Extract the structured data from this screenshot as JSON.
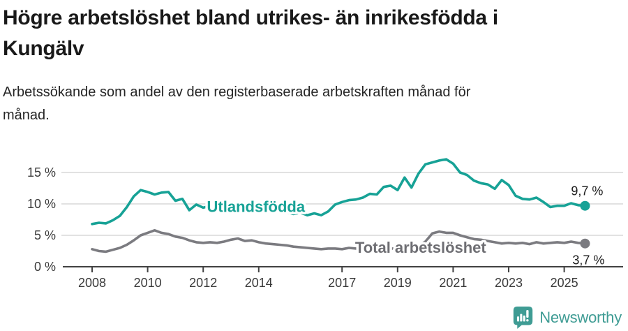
{
  "header": {
    "title_lines": [
      "Högre arbetslöshet bland utrikes- än inrikesfödda i",
      "Kungälv"
    ],
    "subtitle_lines": [
      "Arbetssökande som andel av den registerbaserade arbetskraften månad för",
      "månad."
    ]
  },
  "branding": {
    "name": "Newsworthy",
    "color": "#3f9c94"
  },
  "chart_data": {
    "type": "line",
    "title": "Högre arbetslöshet bland utrikes- än inrikesfödda i Kungälv",
    "xlabel": "",
    "ylabel": "",
    "ylim": [
      0,
      18
    ],
    "xlim": [
      2006.9,
      2027.1
    ],
    "grid": "horizontal",
    "legend": "inline-labels",
    "y_ticks": [
      {
        "value": 0,
        "label": "0 %"
      },
      {
        "value": 5,
        "label": "5 %"
      },
      {
        "value": 10,
        "label": "10 %"
      },
      {
        "value": 15,
        "label": "15 %"
      }
    ],
    "x_ticks": [
      {
        "value": 2008,
        "label": "2008"
      },
      {
        "value": 2010,
        "label": "2010"
      },
      {
        "value": 2012,
        "label": "2012"
      },
      {
        "value": 2014,
        "label": "2014"
      },
      {
        "value": 2017,
        "label": "2017"
      },
      {
        "value": 2019,
        "label": "2019"
      },
      {
        "value": 2021,
        "label": "2021"
      },
      {
        "value": 2023,
        "label": "2023"
      },
      {
        "value": 2025,
        "label": "2025"
      }
    ],
    "x": [
      2008,
      2008.25,
      2008.5,
      2008.75,
      2009,
      2009.25,
      2009.5,
      2009.75,
      2010,
      2010.25,
      2010.5,
      2010.75,
      2011,
      2011.25,
      2011.5,
      2011.75,
      2012,
      2012.25,
      2012.5,
      2012.75,
      2013,
      2013.25,
      2013.5,
      2013.75,
      2014,
      2014.25,
      2014.5,
      2014.75,
      2015,
      2015.25,
      2015.5,
      2015.75,
      2016,
      2016.25,
      2016.5,
      2016.75,
      2017,
      2017.25,
      2017.5,
      2017.75,
      2018,
      2018.25,
      2018.5,
      2018.75,
      2019,
      2019.25,
      2019.5,
      2019.75,
      2020,
      2020.25,
      2020.5,
      2020.75,
      2021,
      2021.25,
      2021.5,
      2021.75,
      2022,
      2022.25,
      2022.5,
      2022.75,
      2023,
      2023.25,
      2023.5,
      2023.75,
      2024,
      2024.25,
      2024.5,
      2024.75,
      2025,
      2025.25,
      2025.5,
      2025.75
    ],
    "series": [
      {
        "name": "Utlandsfödda",
        "color": "#17a296",
        "label_color": "#17a296",
        "end_label": "9,7 %",
        "last_value": "9,7 %",
        "label_pos": {
          "x": 2013.9,
          "y": 8.7
        },
        "values": [
          6.8,
          7.0,
          6.9,
          7.4,
          8.1,
          9.5,
          11.2,
          12.2,
          11.9,
          11.5,
          11.8,
          11.9,
          10.5,
          10.8,
          9.0,
          9.9,
          9.4,
          9.7,
          9.4,
          9.7,
          9.5,
          9.8,
          9.4,
          9.6,
          9.2,
          9.4,
          8.9,
          9.1,
          8.7,
          8.4,
          8.6,
          8.2,
          8.5,
          8.2,
          8.8,
          9.9,
          10.3,
          10.6,
          10.7,
          11.0,
          11.6,
          11.5,
          12.7,
          12.9,
          12.2,
          14.2,
          12.6,
          14.8,
          16.3,
          16.6,
          16.9,
          17.1,
          16.4,
          15.0,
          14.6,
          13.7,
          13.3,
          13.1,
          12.4,
          13.8,
          13.0,
          11.3,
          10.8,
          10.7,
          11.0,
          10.3,
          9.5,
          9.7,
          9.7,
          10.1,
          9.8,
          9.7
        ]
      },
      {
        "name": "Total arbetslöshet",
        "color": "#7b7b80",
        "label_color": "#6e6e73",
        "end_label": "3,7 %",
        "last_value": "3,7 %",
        "label_pos": {
          "x": 2019.83,
          "y": 2.2
        },
        "values": [
          2.8,
          2.5,
          2.4,
          2.7,
          3.0,
          3.5,
          4.2,
          5.0,
          5.4,
          5.8,
          5.4,
          5.2,
          4.8,
          4.6,
          4.2,
          3.9,
          3.8,
          3.9,
          3.8,
          4.0,
          4.3,
          4.5,
          4.1,
          4.2,
          3.9,
          3.7,
          3.6,
          3.5,
          3.4,
          3.2,
          3.1,
          3.0,
          2.9,
          2.8,
          2.9,
          2.9,
          2.8,
          3.0,
          2.9,
          2.9,
          2.9,
          2.8,
          2.8,
          2.9,
          2.9,
          3.0,
          3.1,
          3.3,
          4.0,
          5.3,
          5.6,
          5.4,
          5.4,
          5.0,
          4.7,
          4.4,
          4.3,
          4.1,
          3.9,
          3.7,
          3.8,
          3.7,
          3.8,
          3.6,
          3.9,
          3.7,
          3.8,
          3.9,
          3.8,
          4.0,
          3.8,
          3.7
        ]
      }
    ]
  }
}
